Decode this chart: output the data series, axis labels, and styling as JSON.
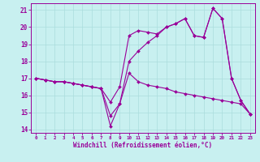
{
  "xlabel": "Windchill (Refroidissement éolien,°C)",
  "ylabel": "",
  "bg_color": "#c8f0f0",
  "line_color": "#990099",
  "grid_color": "#aadddd",
  "xlim": [
    -0.5,
    23.5
  ],
  "ylim": [
    13.8,
    21.4
  ],
  "yticks": [
    14,
    15,
    16,
    17,
    18,
    19,
    20,
    21
  ],
  "xticks": [
    0,
    1,
    2,
    3,
    4,
    5,
    6,
    7,
    8,
    9,
    10,
    11,
    12,
    13,
    14,
    15,
    16,
    17,
    18,
    19,
    20,
    21,
    22,
    23
  ],
  "series": [
    [
      17.0,
      16.9,
      16.8,
      16.8,
      16.7,
      16.6,
      16.5,
      16.4,
      15.6,
      16.5,
      19.5,
      19.8,
      19.7,
      19.6,
      20.0,
      20.2,
      20.5,
      19.5,
      19.4,
      21.1,
      20.5,
      17.0,
      15.7,
      14.9
    ],
    [
      17.0,
      16.9,
      16.8,
      16.8,
      16.7,
      16.6,
      16.5,
      16.4,
      14.2,
      15.5,
      17.3,
      16.8,
      16.6,
      16.5,
      16.4,
      16.2,
      16.1,
      16.0,
      15.9,
      15.8,
      15.7,
      15.6,
      15.5,
      14.9
    ],
    [
      17.0,
      16.9,
      16.8,
      16.8,
      16.7,
      16.6,
      16.5,
      16.4,
      14.8,
      15.5,
      18.0,
      18.6,
      19.1,
      19.5,
      20.0,
      20.2,
      20.5,
      19.5,
      19.4,
      21.1,
      20.5,
      17.0,
      15.7,
      14.9
    ]
  ]
}
